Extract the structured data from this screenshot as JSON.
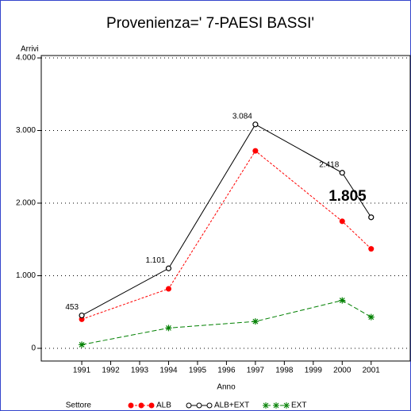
{
  "chart_data": {
    "type": "line",
    "title": "Provenienza=' 7-PAESI BASSI'",
    "y_label": "Arrivi",
    "x_label": "Anno",
    "legend_title": "Settore",
    "x": [
      1991,
      1994,
      1997,
      2000,
      2001
    ],
    "xlim": [
      1989.6,
      2002.35
    ],
    "xticks": [
      1991,
      1992,
      1993,
      1994,
      1995,
      1996,
      1997,
      1998,
      1999,
      2000,
      2001
    ],
    "ylim": [
      -175,
      4033
    ],
    "yticks": [
      0,
      {
        "value": 1000,
        "label": "1.000"
      },
      {
        "value": 2000,
        "label": "2.000"
      },
      {
        "value": 3000,
        "label": "3.000"
      },
      {
        "value": 4000,
        "label": "4.000"
      }
    ],
    "grid": true,
    "series": [
      {
        "name": "ALB",
        "color": "#ff0000",
        "values": [
          400,
          820,
          2720,
          1750,
          1370
        ]
      },
      {
        "name": "ALB+EXT",
        "color": "#000000",
        "values": [
          453,
          1101,
          3084,
          2418,
          1805
        ],
        "value_labels": [
          "453",
          "1.101",
          "3.084",
          "2.418",
          "1.805"
        ]
      },
      {
        "name": "EXT",
        "color": "#008000",
        "values": [
          50,
          280,
          370,
          660,
          430
        ]
      }
    ]
  }
}
